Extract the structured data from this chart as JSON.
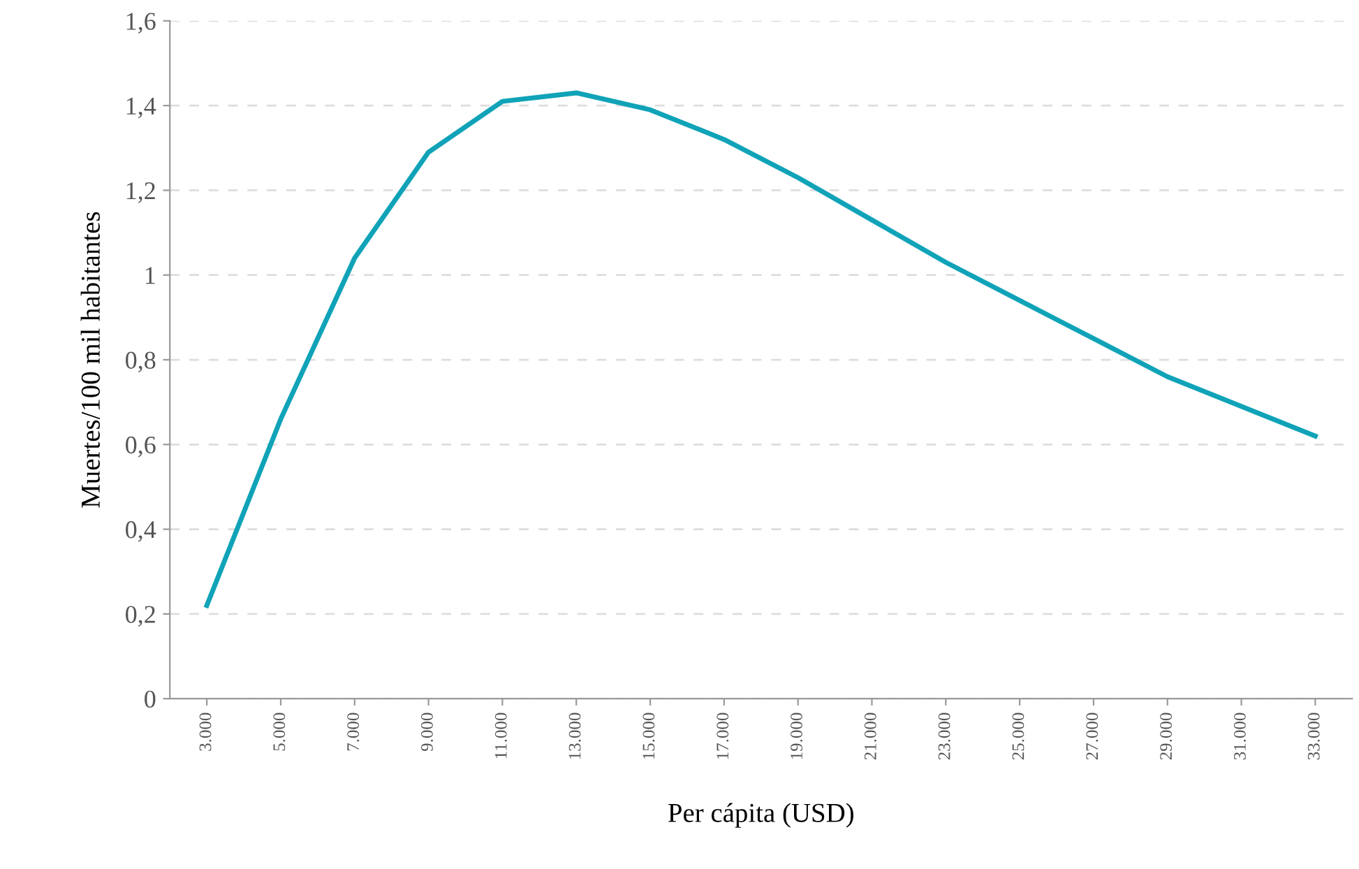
{
  "chart_data": {
    "type": "line",
    "xlabel": "Per cápita (USD)",
    "ylabel": "Muertes/100 mil habitantes",
    "categories": [
      "3.000",
      "5.000",
      "7.000",
      "9.000",
      "11.000",
      "13.000",
      "15.000",
      "17.000",
      "19.000",
      "21.000",
      "23.000",
      "25.000",
      "27.000",
      "29.000",
      "31.000",
      "33.000"
    ],
    "series": [
      {
        "color": "#10a3b8",
        "values": [
          0.22,
          0.66,
          1.04,
          1.29,
          1.41,
          1.43,
          1.39,
          1.32,
          1.23,
          1.13,
          1.03,
          0.94,
          0.85,
          0.76,
          0.69,
          0.62
        ]
      }
    ],
    "ylim": [
      0,
      1.6
    ],
    "yticks": [
      0,
      {
        "value": 0.2,
        "label": "0,2"
      },
      {
        "value": 0.4,
        "label": "0,4"
      },
      {
        "value": 0.6,
        "label": "0,6"
      },
      {
        "value": 0.8,
        "label": "0,8"
      },
      1,
      {
        "value": 1.2,
        "label": "1,2"
      },
      {
        "value": 1.4,
        "label": "1,4"
      },
      {
        "value": 1.6,
        "label": "1,6"
      }
    ],
    "grid": "y",
    "marker": "none",
    "line_style": "solid"
  }
}
